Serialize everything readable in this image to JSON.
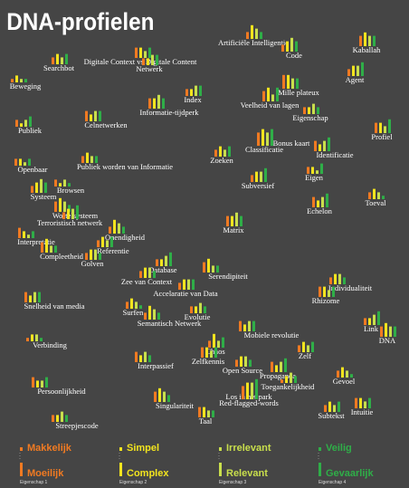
{
  "title": "DNA-profielen",
  "legend": [
    {
      "low": "Makkelijk",
      "high": "Moeilijk",
      "name": "Eigenschap 1",
      "color": "#f07a22"
    },
    {
      "low": "Simpel",
      "high": "Complex",
      "name": "Eigenschap 2",
      "color": "#f2e41e"
    },
    {
      "low": "Irrelevant",
      "high": "Relevant",
      "name": "Eigenschap 3",
      "color": "#c9df4c"
    },
    {
      "low": "Veilig",
      "high": "Gevaarlijk",
      "name": "Eigenschap 4",
      "color": "#2fae48"
    }
  ],
  "nodes": [
    {
      "label": "Artificiële Intelligentie",
      "values": [
        2,
        4,
        3,
        2
      ]
    },
    {
      "label": "Kaballah",
      "values": [
        3,
        4,
        3,
        3
      ]
    },
    {
      "label": "Code",
      "values": [
        2,
        3,
        4,
        3
      ]
    },
    {
      "label": "Digitale Context vs Digitale Content",
      "values": [
        3,
        3,
        2,
        3
      ]
    },
    {
      "label": "Searchbot",
      "values": [
        2,
        3,
        2,
        3
      ]
    },
    {
      "label": "Netwerk",
      "values": [
        2,
        2,
        3,
        3
      ]
    },
    {
      "label": "Agent",
      "values": [
        2,
        3,
        3,
        4
      ]
    },
    {
      "label": "Beweging",
      "values": [
        1,
        2,
        1,
        1
      ]
    },
    {
      "label": "Index",
      "values": [
        2,
        2,
        3,
        3
      ]
    },
    {
      "label": "Mille plateux",
      "values": [
        4,
        4,
        3,
        3
      ]
    },
    {
      "label": "Veelheid van lagen",
      "values": [
        3,
        4,
        2,
        4
      ]
    },
    {
      "label": "Informatie-tijdperk",
      "values": [
        3,
        3,
        4,
        3
      ]
    },
    {
      "label": "Eigenschap",
      "values": [
        2,
        2,
        3,
        2
      ]
    },
    {
      "label": "Celnetwerken",
      "values": [
        3,
        2,
        3,
        3
      ]
    },
    {
      "label": "Publiek",
      "values": [
        2,
        1,
        2,
        3
      ]
    },
    {
      "label": "Profiel",
      "values": [
        3,
        3,
        2,
        4
      ]
    },
    {
      "label": "Bonus kaart",
      "values": [
        2,
        3,
        2,
        3
      ]
    },
    {
      "label": "Classificatie",
      "values": [
        3,
        3,
        2,
        4
      ]
    },
    {
      "label": "Identificatie",
      "values": [
        3,
        2,
        3,
        4
      ]
    },
    {
      "label": "Zoeken",
      "values": [
        2,
        3,
        2,
        3
      ]
    },
    {
      "label": "Openbaar",
      "values": [
        2,
        2,
        1,
        2
      ]
    },
    {
      "label": "Publiek worden van Informatie",
      "values": [
        2,
        3,
        2,
        2
      ]
    },
    {
      "label": "Eigen",
      "values": [
        2,
        2,
        1,
        3
      ]
    },
    {
      "label": "Subversief",
      "values": [
        2,
        3,
        3,
        4
      ]
    },
    {
      "label": "Browsen",
      "values": [
        2,
        1,
        2,
        1
      ]
    },
    {
      "label": "Systeem",
      "values": [
        2,
        3,
        4,
        3
      ]
    },
    {
      "label": "Toeval",
      "values": [
        2,
        3,
        2,
        1
      ]
    },
    {
      "label": "Echelon",
      "values": [
        3,
        2,
        3,
        4
      ]
    },
    {
      "label": "Wortelsysteem",
      "values": [
        3,
        4,
        3,
        2
      ]
    },
    {
      "label": "Terroristisch netwerk",
      "values": [
        2,
        3,
        3,
        4
      ]
    },
    {
      "label": "Matrix",
      "values": [
        3,
        3,
        4,
        3
      ]
    },
    {
      "label": "Onendigheid",
      "values": [
        2,
        4,
        3,
        2
      ]
    },
    {
      "label": "Interpretatie",
      "values": [
        3,
        2,
        1,
        2
      ]
    },
    {
      "label": "Referentie",
      "values": [
        2,
        3,
        2,
        3
      ]
    },
    {
      "label": "Compleetheid",
      "values": [
        3,
        4,
        2,
        2
      ]
    },
    {
      "label": "Golven",
      "values": [
        2,
        3,
        3,
        2
      ]
    },
    {
      "label": "Database",
      "values": [
        2,
        2,
        3,
        4
      ]
    },
    {
      "label": "Serendipiteit",
      "values": [
        3,
        4,
        2,
        2
      ]
    },
    {
      "label": "Zee van Context",
      "values": [
        2,
        3,
        3,
        2
      ]
    },
    {
      "label": "Individualiteit",
      "values": [
        2,
        3,
        3,
        2
      ]
    },
    {
      "label": "Accelaratie van Data",
      "values": [
        2,
        3,
        3,
        3
      ]
    },
    {
      "label": "Rhizome",
      "values": [
        3,
        3,
        2,
        3
      ]
    },
    {
      "label": "Snelheid van media",
      "values": [
        3,
        2,
        3,
        3
      ]
    },
    {
      "label": "Surfen",
      "values": [
        2,
        3,
        2,
        1
      ]
    },
    {
      "label": "Evolutie",
      "values": [
        2,
        2,
        3,
        2
      ]
    },
    {
      "label": "Semantisch Netwerk",
      "values": [
        2,
        4,
        3,
        2
      ]
    },
    {
      "label": "Link",
      "values": [
        2,
        2,
        3,
        4
      ]
    },
    {
      "label": "Mobiele revolutie",
      "values": [
        3,
        2,
        3,
        3
      ]
    },
    {
      "label": "DNA",
      "values": [
        3,
        4,
        3,
        3
      ]
    },
    {
      "label": "Verbinding",
      "values": [
        1,
        2,
        2,
        1
      ]
    },
    {
      "label": "Chaos",
      "values": [
        2,
        4,
        2,
        3
      ]
    },
    {
      "label": "Zelf",
      "values": [
        2,
        3,
        2,
        3
      ]
    },
    {
      "label": "Interpassief",
      "values": [
        3,
        2,
        3,
        2
      ]
    },
    {
      "label": "Zelfkennis",
      "values": [
        3,
        3,
        2,
        3
      ]
    },
    {
      "label": "Open Source",
      "values": [
        2,
        3,
        3,
        2
      ]
    },
    {
      "label": "Gevoel",
      "values": [
        2,
        3,
        2,
        1
      ]
    },
    {
      "label": "Propaganda",
      "values": [
        3,
        2,
        3,
        4
      ]
    },
    {
      "label": "Toegankelijkheid",
      "values": [
        1,
        2,
        3,
        2
      ]
    },
    {
      "label": "Persoonlijkheid",
      "values": [
        3,
        2,
        2,
        3
      ]
    },
    {
      "label": "Los in het park",
      "values": [
        2,
        3,
        3,
        4
      ]
    },
    {
      "label": "Red-flagged-words",
      "values": [
        2,
        2,
        3,
        4
      ]
    },
    {
      "label": "Singulariteit",
      "values": [
        3,
        4,
        3,
        2
      ]
    },
    {
      "label": "Subtekst",
      "values": [
        2,
        3,
        2,
        3
      ]
    },
    {
      "label": "Intuitie",
      "values": [
        3,
        3,
        2,
        3
      ]
    },
    {
      "label": "Taal",
      "values": [
        3,
        3,
        2,
        2
      ]
    },
    {
      "label": "Streepjescode",
      "values": [
        2,
        2,
        3,
        2
      ]
    }
  ]
}
